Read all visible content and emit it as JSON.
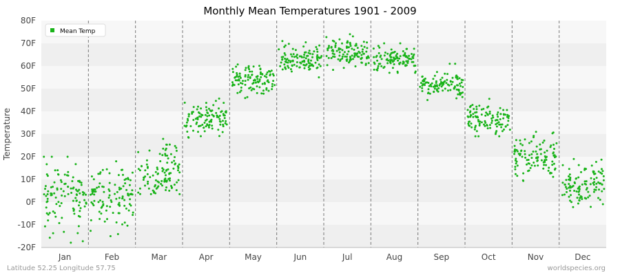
{
  "chart_data": {
    "type": "scatter",
    "title": "Monthly Mean Temperatures 1901 - 2009",
    "ylabel": "Temperature",
    "xlabel": "",
    "categories": [
      "Jan",
      "Feb",
      "Mar",
      "Apr",
      "May",
      "Jun",
      "Jul",
      "Aug",
      "Sep",
      "Oct",
      "Nov",
      "Dec"
    ],
    "y_ticks": [
      "-20F",
      "-10F",
      "0F",
      "10F",
      "20F",
      "30F",
      "40F",
      "50F",
      "60F",
      "70F",
      "80F"
    ],
    "ylim": [
      -20,
      80
    ],
    "legend": {
      "placement": "top-left",
      "entries": [
        "Mean Temp"
      ]
    },
    "grid": "alternating horizontal bands, dashed vertical month separators",
    "series": [
      {
        "name": "Mean Temp",
        "color": "#19b319",
        "points_per_month": 109,
        "monthly_center": [
          2,
          2,
          13,
          37,
          54,
          63,
          66,
          63,
          52,
          37,
          20,
          7
        ],
        "monthly_range": [
          [
            -18,
            20
          ],
          [
            -15,
            18
          ],
          [
            -2,
            31
          ],
          [
            28,
            47
          ],
          [
            45,
            63
          ],
          [
            55,
            71
          ],
          [
            58,
            74
          ],
          [
            57,
            70
          ],
          [
            45,
            61
          ],
          [
            29,
            46
          ],
          [
            8,
            31
          ],
          [
            -7,
            19
          ]
        ]
      }
    ]
  },
  "footer": {
    "left": "Latitude 52.25 Longitude 57.75",
    "right": "worldspecies.org"
  }
}
